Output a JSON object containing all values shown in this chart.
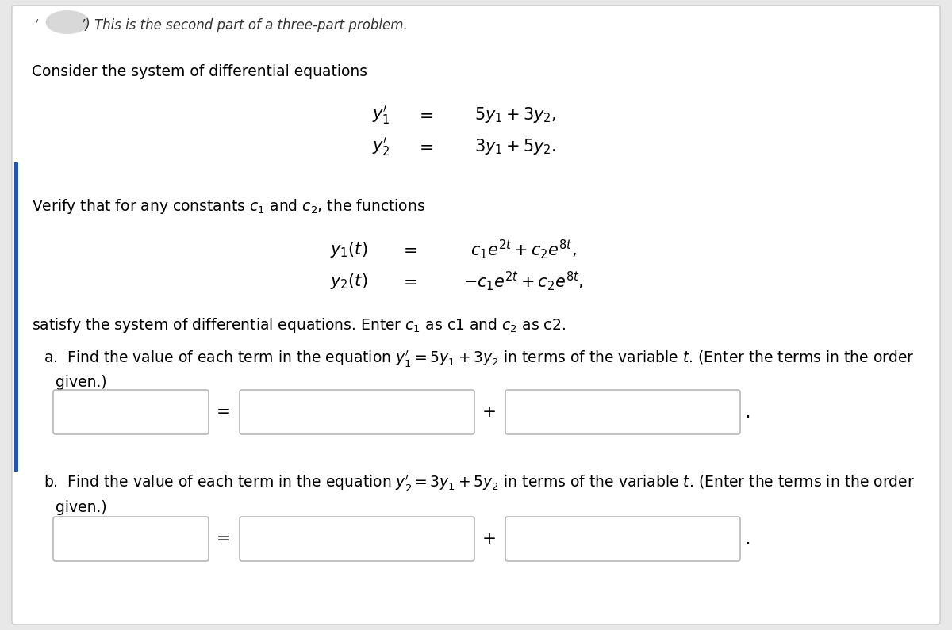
{
  "bg_color": "#e8e8e8",
  "content_bg": "#ffffff",
  "text_color": "#000000",
  "fs": 13.5,
  "fs_math": 15,
  "header_text": "’) This is the second part of a three-part problem.",
  "line1": "Consider the system of differential equations",
  "eq1a": "$y_1'$",
  "eq1b": "$=$",
  "eq1c": "$5y_1 + 3y_2,$",
  "eq2a": "$y_2'$",
  "eq2b": "$=$",
  "eq2c": "$3y_1 + 5y_2.$",
  "verify_line": "Verify that for any constants $c_1$ and $c_2$, the functions",
  "sol1a": "$y_1(t)$",
  "sol1b": "$=$",
  "sol1c": "$c_1e^{2t} + c_2e^{8t},$",
  "sol2a": "$y_2(t)$",
  "sol2b": "$=$",
  "sol2c": "$-c_1e^{2t} + c_2e^{8t},$",
  "satisfy_line": "satisfy the system of differential equations. Enter $c_1$ as c1 and $c_2$ as c2.",
  "parta_line1": "a.  Find the value of each term in the equation $y_1' = 5y_1 + 3y_2$ in terms of the variable $t$. (Enter the terms in the order",
  "parta_line2": "given.)",
  "partb_line1": "b.  Find the value of each term in the equation $y_2' = 3y_1 + 5y_2$ in terms of the variable $t$. (Enter the terms in the order",
  "partb_line2": "given.)"
}
